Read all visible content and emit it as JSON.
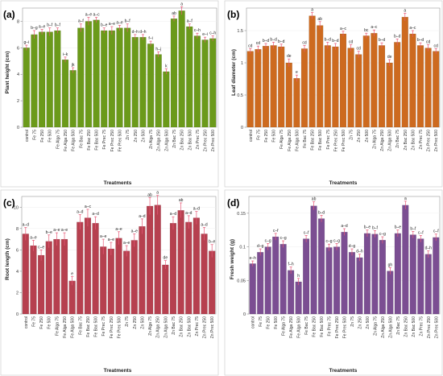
{
  "chart_data": [
    {
      "panel": "(a)",
      "type": "bar",
      "color": "#6b9a1a",
      "xlabel": "Treatments",
      "ylabel": "Plant height (cm)",
      "ylim": [
        0,
        9
      ],
      "yticks": [
        0,
        2,
        4,
        6,
        8
      ],
      "categories": [
        "control",
        "Fe 75",
        "Fe 250",
        "Fe 500",
        "Fe Alga 75",
        "Fe Alga 250",
        "Fe Alga 500",
        "Fe Bac 75",
        "Fe Bac 250",
        "Fe Bac 500",
        "Fe Prec 75",
        "Fe Prec 250",
        "Fe Prec 500",
        "Zn 75",
        "Zn 250",
        "Zn 500",
        "Zn Alga 75",
        "Zn Alga 250",
        "Zn Alga 500",
        "Zn Bac 75",
        "Zn Bac 250",
        "Zn Bac 500",
        "Zn Prec 75",
        "Zn Prec 250",
        "Zn Prec 500"
      ],
      "values": [
        6.0,
        7.0,
        7.2,
        7.2,
        7.3,
        5.1,
        4.3,
        7.5,
        8.0,
        8.1,
        7.3,
        7.3,
        7.5,
        7.5,
        6.8,
        6.8,
        6.3,
        5.5,
        4.2,
        8.2,
        8.8,
        7.6,
        6.9,
        6.6,
        6.7
      ],
      "significance": [
        "g–i",
        "b–g",
        "a–e",
        "b–f",
        "b–f",
        "i–k",
        "jk",
        "a–f",
        "a–e",
        "a–c",
        "b–e",
        "a–e",
        "a–e",
        "b–f",
        "d–h",
        "d–h",
        "f–i",
        "h–j",
        "k",
        "ab",
        "a",
        "a–f",
        "c–h",
        "e–i",
        "c–h"
      ],
      "error": [
        0.2,
        0.3,
        0.2,
        0.3,
        0.2,
        0.2,
        0.2,
        0.3,
        0.3,
        0.2,
        0.2,
        0.3,
        0.2,
        0.3,
        0.2,
        0.2,
        0.2,
        0.2,
        0.2,
        0.2,
        0.3,
        0.2,
        0.2,
        0.2,
        0.2
      ]
    },
    {
      "panel": "(b)",
      "type": "bar",
      "color": "#cd6a1f",
      "xlabel": "Treatments",
      "ylabel": "Leaf diameter (cm)",
      "ylim": [
        0,
        1.85
      ],
      "yticks": [
        0.0,
        0.5,
        1.0,
        1.5
      ],
      "categories": [
        "control",
        "Fe 75",
        "Fe 250",
        "Fe 500",
        "Fe Alga 75",
        "Fe Alga 250",
        "Fe Alga 500",
        "Fe Bac 75",
        "Fe Bac 250",
        "Fe Bac 500",
        "Fe Prec 75",
        "Fe Prec 250",
        "Fe Prec 500",
        "Zn 75",
        "Zn 250",
        "Zn 500",
        "Zn Alga 75",
        "Zn Alga 250",
        "Zn Alga 500",
        "Zn Bac 75",
        "Zn Bac 250",
        "Zn Bac 500",
        "Zn Prec 75",
        "Zn Prec 250",
        "Zn Prec 500"
      ],
      "values": [
        1.18,
        1.21,
        1.26,
        1.27,
        1.25,
        1.0,
        0.76,
        1.22,
        1.73,
        1.58,
        1.27,
        1.25,
        1.45,
        1.23,
        1.13,
        1.42,
        1.46,
        1.27,
        1.0,
        1.32,
        1.71,
        1.45,
        1.27,
        1.23,
        1.18
      ],
      "significance": [
        "cd",
        "cd",
        "b–d",
        "b–d",
        "b–d",
        "de",
        "e",
        "cd",
        "a",
        "ab",
        "b–d",
        "b–d",
        "a–c",
        "cd",
        "cd",
        "bc",
        "a–c",
        "b–d",
        "de",
        "b–d",
        "a",
        "a–c",
        "b–d",
        "cd",
        "cd"
      ],
      "error": [
        0.04,
        0.05,
        0.04,
        0.05,
        0.04,
        0.06,
        0.05,
        0.05,
        0.05,
        0.06,
        0.05,
        0.05,
        0.04,
        0.05,
        0.05,
        0.04,
        0.05,
        0.04,
        0.05,
        0.05,
        0.06,
        0.05,
        0.04,
        0.05,
        0.04
      ]
    },
    {
      "panel": "(c)",
      "type": "bar",
      "color": "#b6404f",
      "xlabel": "Treatments",
      "ylabel": "Root length (cm)",
      "ylim": [
        0,
        11
      ],
      "yticks": [
        0,
        2,
        4,
        6,
        8,
        10
      ],
      "categories": [
        "control",
        "Fe 75",
        "Fe 250",
        "Fe 500",
        "Fe Alga 75",
        "Fe Alga 250",
        "Fe Alga 500",
        "Fe Bac 75",
        "Fe Bac 250",
        "Fe Bac 500",
        "Fe Prec 75",
        "Fe Prec 250",
        "Fe Prec 500",
        "Zn 75",
        "Zn 250",
        "Zn 500",
        "Zn Alga 75",
        "Zn Alga 250",
        "Zn Alga 500",
        "Zn Bac 75",
        "Zn Bac 250",
        "Zn Bac 500",
        "Zn Prec 75",
        "Zn Prec 250",
        "Zn Prec 500"
      ],
      "values": [
        7.5,
        6.4,
        5.5,
        6.8,
        7.0,
        7.0,
        3.1,
        8.6,
        9.0,
        8.5,
        6.3,
        6.1,
        7.1,
        5.9,
        6.9,
        8.2,
        10.1,
        10.2,
        4.6,
        8.5,
        9.7,
        8.6,
        9.0,
        7.5,
        5.9
      ],
      "significance": [
        "a–d",
        "a–e",
        "c–e",
        "b–e",
        "a–e",
        "a–e",
        "e",
        "a–d",
        "a–c",
        "a–d",
        "a–e",
        "a–e",
        "a–e",
        "a–e",
        "a–e",
        "a–d",
        "ab",
        "a",
        "de",
        "a–d",
        "ab",
        "a–d",
        "a–d",
        "a–d",
        "b–e"
      ],
      "error": [
        0.6,
        0.5,
        0.5,
        0.6,
        0.6,
        0.6,
        0.4,
        0.7,
        0.8,
        0.6,
        0.7,
        0.6,
        0.6,
        0.5,
        0.6,
        0.7,
        0.8,
        0.9,
        0.4,
        0.6,
        0.7,
        0.6,
        0.6,
        0.6,
        0.6
      ]
    },
    {
      "panel": "(d)",
      "type": "bar",
      "color": "#7b4e92",
      "xlabel": "Treatments",
      "ylabel": "Fresh weight (g)",
      "ylim": [
        0,
        0.175
      ],
      "yticks": [
        0.0,
        0.05,
        0.1,
        0.15
      ],
      "categories": [
        "control",
        "Fe 75",
        "Fe 250",
        "Fe 500",
        "Fe Alga 75",
        "Fe Alga 250",
        "Fe Alga 500",
        "Fe Bac 75",
        "Fe Bac 250",
        "Fe Bac 500",
        "Fe Prec 75",
        "Fe Prec 250",
        "Fe Prec 500",
        "Zn 75",
        "Zn 250",
        "Zn 500",
        "Zn Alga 75",
        "Zn Alga 250",
        "Zn Alga 500",
        "Zn Bac 75",
        "Zn Bac 250",
        "Zn Bac 500",
        "Zn Prec 75",
        "Zn Prec 250",
        "Zn Prec 500"
      ],
      "values": [
        0.075,
        0.092,
        0.1,
        0.115,
        0.104,
        0.065,
        0.048,
        0.112,
        0.161,
        0.142,
        0.099,
        0.1,
        0.122,
        0.092,
        0.084,
        0.12,
        0.119,
        0.11,
        0.064,
        0.12,
        0.162,
        0.118,
        0.112,
        0.089,
        0.114
      ],
      "significance": [
        "e–h",
        "d–g",
        "c–g",
        "c–f",
        "c–g",
        "f–h",
        "h",
        "c–f",
        "ab",
        "b–d",
        "c–g",
        "c–g",
        "a–d",
        "d–g",
        "d–h",
        "b–e",
        "b–f",
        "c–g",
        "gh",
        "b–e",
        "a",
        "b–f",
        "c–f",
        "d–h",
        "c–f"
      ],
      "error": [
        0.004,
        0.005,
        0.005,
        0.005,
        0.005,
        0.005,
        0.005,
        0.005,
        0.006,
        0.005,
        0.005,
        0.005,
        0.005,
        0.005,
        0.005,
        0.005,
        0.005,
        0.005,
        0.005,
        0.005,
        0.006,
        0.005,
        0.005,
        0.005,
        0.005
      ]
    }
  ]
}
